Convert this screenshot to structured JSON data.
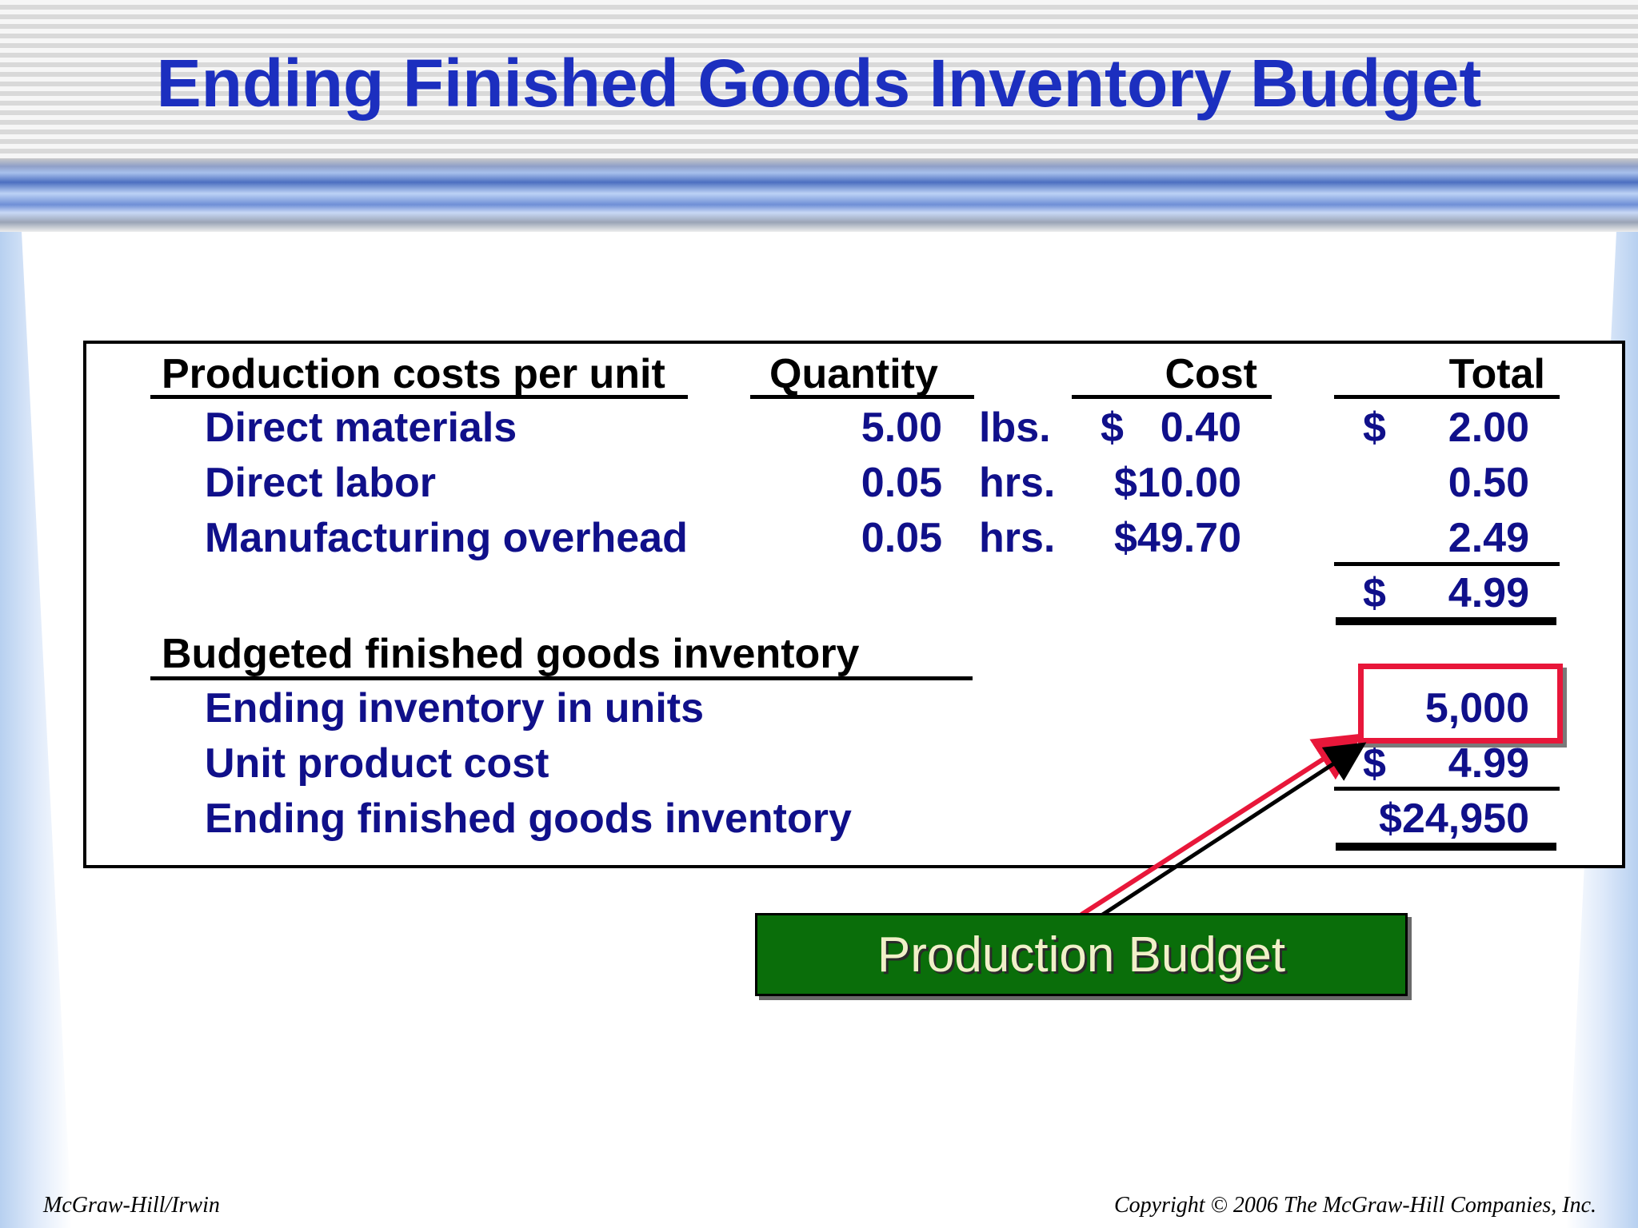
{
  "slide": {
    "title": "Ending Finished Goods Inventory Budget"
  },
  "table": {
    "headers": {
      "section1": "Production costs per unit",
      "quantity": "Quantity",
      "cost": "Cost",
      "total": "Total"
    },
    "cost_rows": [
      {
        "label": "Direct materials",
        "quantity": "5.00",
        "unit": "lbs.",
        "cost_sign": "$",
        "cost": "0.40",
        "total_sign": "$",
        "total": "2.00"
      },
      {
        "label": "Direct labor",
        "quantity": "0.05",
        "unit": "hrs.",
        "cost_sign": "",
        "cost": "$10.00",
        "total_sign": "",
        "total": "0.50"
      },
      {
        "label": "Manufacturing overhead",
        "quantity": "0.05",
        "unit": "hrs.",
        "cost_sign": "",
        "cost": "$49.70",
        "total_sign": "",
        "total": "2.49"
      }
    ],
    "unit_cost_total": {
      "sign": "$",
      "value": "4.99"
    },
    "section2": "Budgeted finished goods inventory",
    "inventory_rows": [
      {
        "label": "Ending inventory in units",
        "sign": "",
        "value": "5,000"
      },
      {
        "label": "Unit product cost",
        "sign": "$",
        "value": "4.99"
      },
      {
        "label": "Ending finished goods inventory",
        "sign": "",
        "value": "$24,950"
      }
    ]
  },
  "callout": {
    "label": "Production Budget"
  },
  "colors": {
    "title": "#1c2fbf",
    "body_text": "#10108a",
    "highlight": "#e8173a",
    "callout_bg": "#0a6e0a"
  },
  "footer": {
    "left": "McGraw-Hill/Irwin",
    "right": "Copyright © 2006 The McGraw-Hill Companies, Inc."
  }
}
